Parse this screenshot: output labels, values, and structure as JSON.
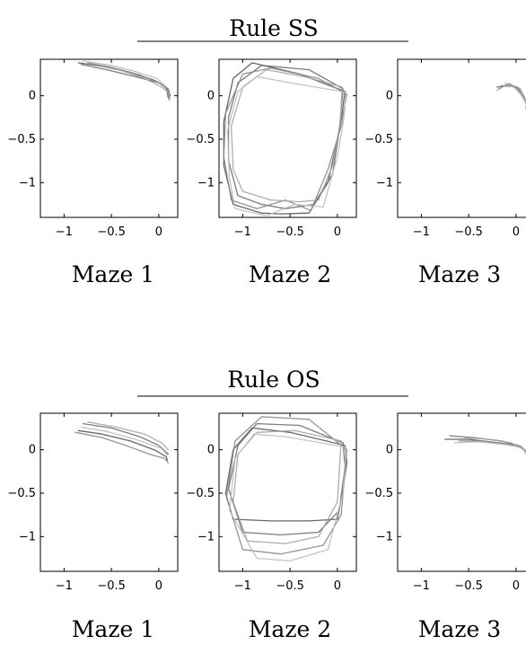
{
  "figure": {
    "groups": [
      {
        "title": "Rule SS",
        "panels": [
          {
            "caption": "Maze 1"
          },
          {
            "caption": "Maze 2"
          },
          {
            "caption": "Maze 3"
          }
        ]
      },
      {
        "title": "Rule OS",
        "panels": [
          {
            "caption": "Maze 1"
          },
          {
            "caption": "Maze 2"
          },
          {
            "caption": "Maze 3"
          }
        ]
      }
    ],
    "x_tick_labels": [
      "−1",
      "−0.5",
      "0"
    ],
    "y_tick_labels": [
      "0",
      "−0.5",
      "−1"
    ],
    "trajectory_colors": [
      "#555555",
      "#6e6e6e",
      "#888888",
      "#a4a4a4",
      "#bdbdbd"
    ]
  },
  "chart_data": {
    "type": "line",
    "xlim": [
      -1.25,
      0.2
    ],
    "ylim": [
      -1.4,
      0.42
    ],
    "x_ticks": [
      -1,
      -0.5,
      0
    ],
    "y_ticks": [
      0,
      -0.5,
      -1
    ],
    "grid": false,
    "panels": [
      {
        "group": "Rule SS",
        "maze": "Maze 1",
        "series": [
          {
            "x": [
              -0.85,
              -0.6,
              -0.3,
              -0.05,
              0.08,
              0.1
            ],
            "y": [
              0.38,
              0.34,
              0.27,
              0.18,
              0.1,
              -0.02
            ]
          },
          {
            "x": [
              -0.82,
              -0.55,
              -0.25,
              0.0,
              0.1,
              0.12
            ],
            "y": [
              0.36,
              0.3,
              0.22,
              0.15,
              0.08,
              0.0
            ]
          },
          {
            "x": [
              -0.75,
              -0.5,
              -0.2,
              0.02,
              0.1,
              0.11
            ],
            "y": [
              0.38,
              0.33,
              0.24,
              0.14,
              0.06,
              -0.05
            ]
          },
          {
            "x": [
              -0.7,
              -0.45,
              -0.15,
              0.03,
              0.09,
              0.12
            ],
            "y": [
              0.37,
              0.31,
              0.2,
              0.1,
              0.05,
              -0.03
            ]
          },
          {
            "x": [
              -0.8,
              -0.5,
              -0.25,
              -0.02,
              0.08
            ],
            "y": [
              0.4,
              0.35,
              0.28,
              0.2,
              0.1
            ]
          }
        ]
      },
      {
        "group": "Rule SS",
        "maze": "Maze 2",
        "series": [
          {
            "x": [
              0.08,
              -0.4,
              -0.9,
              -1.1,
              -1.2,
              -1.2,
              -1.1,
              -0.8,
              -0.6,
              -0.3,
              -0.1,
              0.0,
              0.05,
              0.08
            ],
            "y": [
              0.05,
              0.25,
              0.38,
              0.2,
              -0.3,
              -0.8,
              -1.25,
              -1.35,
              -1.36,
              -1.35,
              -1.0,
              -0.5,
              -0.2,
              0.05
            ]
          },
          {
            "x": [
              0.06,
              -0.3,
              -0.8,
              -1.05,
              -1.15,
              -1.15,
              -1.05,
              -0.8,
              -0.55,
              -0.25,
              -0.05,
              0.02,
              0.06
            ],
            "y": [
              0.08,
              0.3,
              0.35,
              0.15,
              -0.25,
              -0.75,
              -1.15,
              -1.25,
              -1.3,
              -1.25,
              -0.9,
              -0.4,
              0.08
            ]
          },
          {
            "x": [
              0.1,
              -0.2,
              -0.7,
              -1.0,
              -1.18,
              -1.2,
              -1.12,
              -0.85,
              -0.55,
              -0.28,
              -0.1,
              0.04,
              0.1
            ],
            "y": [
              0.02,
              0.2,
              0.32,
              0.25,
              -0.2,
              -0.7,
              -1.2,
              -1.3,
              -1.2,
              -1.32,
              -0.85,
              -0.35,
              0.02
            ]
          },
          {
            "x": [
              0.05,
              -0.35,
              -0.75,
              -1.0,
              -1.12,
              -1.1,
              -1.0,
              -0.7,
              -0.4,
              -0.2,
              -0.05,
              0.03,
              0.05
            ],
            "y": [
              0.1,
              0.22,
              0.3,
              0.1,
              -0.35,
              -0.85,
              -1.1,
              -1.2,
              -1.22,
              -1.2,
              -0.8,
              -0.3,
              0.1
            ]
          },
          {
            "x": [
              0.09,
              -0.5,
              -0.85,
              -1.05,
              -1.16,
              -1.14,
              -1.08,
              -0.75,
              -0.45,
              -0.15,
              0.0,
              0.07,
              0.09
            ],
            "y": [
              0.04,
              0.15,
              0.22,
              0.05,
              -0.4,
              -0.95,
              -1.3,
              -1.38,
              -1.25,
              -1.28,
              -0.7,
              -0.25,
              0.04
            ]
          }
        ]
      },
      {
        "group": "Rule SS",
        "maze": "Maze 3",
        "series": [
          {
            "x": [
              -0.2,
              -0.05,
              0.05,
              0.1,
              0.12
            ],
            "y": [
              0.1,
              0.12,
              0.05,
              -0.05,
              -0.12
            ]
          },
          {
            "x": [
              -0.18,
              -0.08,
              0.04,
              0.09,
              0.11
            ],
            "y": [
              0.08,
              0.14,
              0.08,
              -0.02,
              -0.1
            ]
          },
          {
            "x": [
              -0.15,
              -0.02,
              0.06,
              0.1,
              0.13
            ],
            "y": [
              0.12,
              0.1,
              0.02,
              -0.08,
              -0.14
            ]
          },
          {
            "x": [
              -0.2,
              -0.1,
              0.02,
              0.08,
              0.12
            ],
            "y": [
              0.06,
              0.13,
              0.1,
              0.0,
              -0.11
            ]
          },
          {
            "x": [
              -0.12,
              0.0,
              0.07,
              0.11,
              0.1
            ],
            "y": [
              0.15,
              0.08,
              -0.02,
              -0.1,
              -0.15
            ]
          }
        ]
      },
      {
        "group": "Rule OS",
        "maze": "Maze 1",
        "series": [
          {
            "x": [
              -0.85,
              -0.6,
              -0.3,
              -0.05,
              0.08,
              0.09
            ],
            "y": [
              0.22,
              0.18,
              0.1,
              0.0,
              -0.08,
              -0.12
            ]
          },
          {
            "x": [
              -0.8,
              -0.5,
              -0.2,
              0.0,
              0.1
            ],
            "y": [
              0.3,
              0.25,
              0.15,
              0.05,
              -0.05
            ]
          },
          {
            "x": [
              -0.88,
              -0.6,
              -0.35,
              -0.1,
              0.06,
              0.1
            ],
            "y": [
              0.2,
              0.14,
              0.05,
              -0.05,
              -0.1,
              -0.15
            ]
          },
          {
            "x": [
              -0.75,
              -0.45,
              -0.15,
              0.03,
              0.1
            ],
            "y": [
              0.32,
              0.26,
              0.18,
              0.08,
              0.0
            ]
          },
          {
            "x": [
              -0.82,
              -0.55,
              -0.25,
              0.02,
              0.09
            ],
            "y": [
              0.26,
              0.21,
              0.12,
              0.02,
              -0.06
            ]
          }
        ]
      },
      {
        "group": "Rule OS",
        "maze": "Maze 2",
        "series": [
          {
            "x": [
              0.08,
              -0.5,
              -0.9,
              -1.1,
              -1.18,
              -1.1,
              -0.7,
              -0.3,
              0.0,
              0.05,
              0.1,
              0.08
            ],
            "y": [
              0.05,
              0.2,
              0.25,
              0.0,
              -0.5,
              -0.8,
              -0.82,
              -0.82,
              -0.8,
              -0.5,
              -0.15,
              0.05
            ]
          },
          {
            "x": [
              0.06,
              -0.4,
              -0.85,
              -1.05,
              -1.15,
              -1.0,
              -0.6,
              -0.2,
              0.02,
              0.08,
              0.06
            ],
            "y": [
              0.08,
              0.28,
              0.3,
              0.05,
              -0.45,
              -0.95,
              -0.98,
              -0.95,
              -0.7,
              -0.2,
              0.08
            ]
          },
          {
            "x": [
              0.1,
              -0.3,
              -0.8,
              -1.08,
              -1.17,
              -1.0,
              -0.6,
              -0.15,
              0.04,
              0.1
            ],
            "y": [
              0.0,
              0.35,
              0.38,
              0.1,
              -0.55,
              -1.15,
              -1.2,
              -1.1,
              -0.75,
              0.0
            ]
          },
          {
            "x": [
              0.04,
              -0.45,
              -0.85,
              -1.05,
              -1.1,
              -0.95,
              -0.55,
              -0.2,
              0.0,
              0.04
            ],
            "y": [
              0.1,
              0.22,
              0.2,
              -0.05,
              -0.6,
              -1.05,
              -1.08,
              -1.0,
              -0.6,
              0.1
            ]
          },
          {
            "x": [
              0.09,
              -0.55,
              -0.88,
              -1.08,
              -1.14,
              -0.85,
              -0.5,
              -0.1,
              0.06,
              0.09
            ],
            "y": [
              0.03,
              0.15,
              0.18,
              -0.1,
              -0.7,
              -1.25,
              -1.28,
              -1.15,
              -0.5,
              0.03
            ]
          }
        ]
      },
      {
        "group": "Rule OS",
        "maze": "Maze 3",
        "series": [
          {
            "x": [
              -0.75,
              -0.5,
              -0.2,
              0.0,
              0.12,
              0.15
            ],
            "y": [
              0.12,
              0.12,
              0.08,
              0.05,
              -0.02,
              -0.1
            ]
          },
          {
            "x": [
              -0.7,
              -0.45,
              -0.15,
              0.05,
              0.14,
              0.12
            ],
            "y": [
              0.16,
              0.14,
              0.1,
              0.04,
              -0.06,
              -0.15
            ]
          },
          {
            "x": [
              -0.6,
              -0.35,
              -0.1,
              0.06,
              0.14,
              0.13
            ],
            "y": [
              0.1,
              0.1,
              0.07,
              0.02,
              -0.08,
              -0.18
            ]
          },
          {
            "x": [
              -0.55,
              -0.3,
              -0.05,
              0.08,
              0.15
            ],
            "y": [
              0.14,
              0.12,
              0.08,
              0.0,
              -0.12
            ]
          },
          {
            "x": [
              -0.65,
              -0.4,
              -0.12,
              0.04,
              0.13,
              0.14
            ],
            "y": [
              0.08,
              0.09,
              0.06,
              0.03,
              -0.04,
              -0.12
            ]
          }
        ]
      }
    ]
  }
}
